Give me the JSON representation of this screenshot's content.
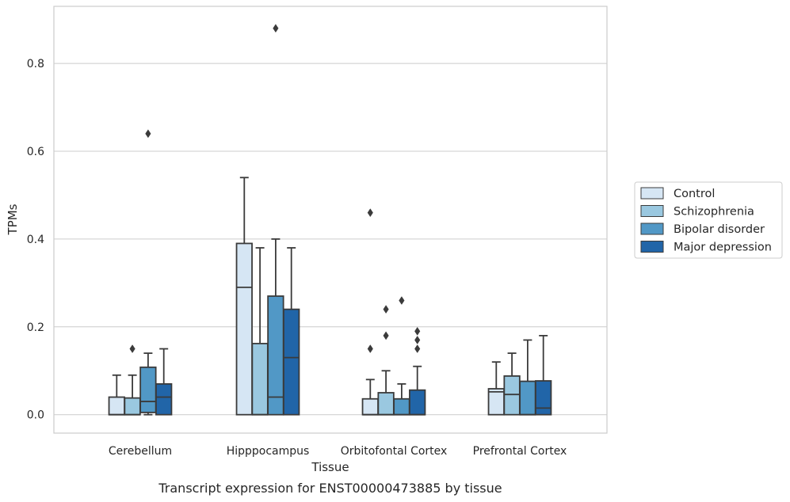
{
  "chart_data": {
    "type": "box",
    "title": "Transcript expression for ENST00000473885 by tissue",
    "xlabel": "Tissue",
    "ylabel": "TPMs",
    "ylim": [
      -0.042,
      0.93
    ],
    "yticks": [
      0.0,
      0.2,
      0.4,
      0.6,
      0.8
    ],
    "ytick_labels": [
      "0.0",
      "0.2",
      "0.4",
      "0.6",
      "0.8"
    ],
    "grid": "horizontal",
    "legend_position": "right",
    "categories": [
      "Cerebellum",
      "Hipppocampus",
      "Orbitofontal Cortex",
      "Prefrontal Cortex"
    ],
    "series": [
      {
        "name": "Control",
        "color": "#d6e6f4",
        "boxes": [
          {
            "min": 0.0,
            "q1": 0.0,
            "median": 0.0,
            "q3": 0.04,
            "max": 0.09,
            "outliers": []
          },
          {
            "min": 0.0,
            "q1": 0.0,
            "median": 0.29,
            "q3": 0.39,
            "max": 0.54,
            "outliers": []
          },
          {
            "min": 0.0,
            "q1": 0.0,
            "median": 0.0,
            "q3": 0.036,
            "max": 0.08,
            "outliers": [
              0.15,
              0.46
            ]
          },
          {
            "min": 0.0,
            "q1": 0.0,
            "median": 0.052,
            "q3": 0.059,
            "max": 0.12,
            "outliers": []
          }
        ]
      },
      {
        "name": "Schizophrenia",
        "color": "#9ac8e0",
        "boxes": [
          {
            "min": 0.0,
            "q1": 0.0,
            "median": 0.0,
            "q3": 0.038,
            "max": 0.09,
            "outliers": [
              0.15
            ]
          },
          {
            "min": 0.0,
            "q1": 0.0,
            "median": 0.0,
            "q3": 0.162,
            "max": 0.38,
            "outliers": []
          },
          {
            "min": 0.0,
            "q1": 0.0,
            "median": 0.0,
            "q3": 0.05,
            "max": 0.1,
            "outliers": [
              0.18,
              0.24
            ]
          },
          {
            "min": 0.0,
            "q1": 0.0,
            "median": 0.046,
            "q3": 0.088,
            "max": 0.14,
            "outliers": []
          }
        ]
      },
      {
        "name": "Bipolar disorder",
        "color": "#5198c6",
        "boxes": [
          {
            "min": 0.0,
            "q1": 0.005,
            "median": 0.03,
            "q3": 0.108,
            "max": 0.14,
            "outliers": [
              0.64
            ]
          },
          {
            "min": 0.0,
            "q1": 0.0,
            "median": 0.04,
            "q3": 0.27,
            "max": 0.4,
            "outliers": [
              0.88
            ]
          },
          {
            "min": 0.0,
            "q1": 0.0,
            "median": 0.0,
            "q3": 0.036,
            "max": 0.07,
            "outliers": [
              0.26
            ]
          },
          {
            "min": 0.0,
            "q1": 0.0,
            "median": 0.0,
            "q3": 0.076,
            "max": 0.17,
            "outliers": []
          }
        ]
      },
      {
        "name": "Major depression",
        "color": "#2165a8",
        "boxes": [
          {
            "min": 0.0,
            "q1": 0.0,
            "median": 0.04,
            "q3": 0.07,
            "max": 0.15,
            "outliers": []
          },
          {
            "min": 0.0,
            "q1": 0.0,
            "median": 0.13,
            "q3": 0.24,
            "max": 0.38,
            "outliers": []
          },
          {
            "min": 0.0,
            "q1": 0.0,
            "median": 0.0,
            "q3": 0.056,
            "max": 0.11,
            "outliers": [
              0.15,
              0.17,
              0.19
            ]
          },
          {
            "min": 0.0,
            "q1": 0.0,
            "median": 0.015,
            "q3": 0.077,
            "max": 0.18,
            "outliers": []
          }
        ]
      }
    ]
  },
  "colors": {
    "edge": "#3b3b3b",
    "grid": "#cccccc",
    "frame": "#cccccc",
    "background": "#ffffff"
  }
}
